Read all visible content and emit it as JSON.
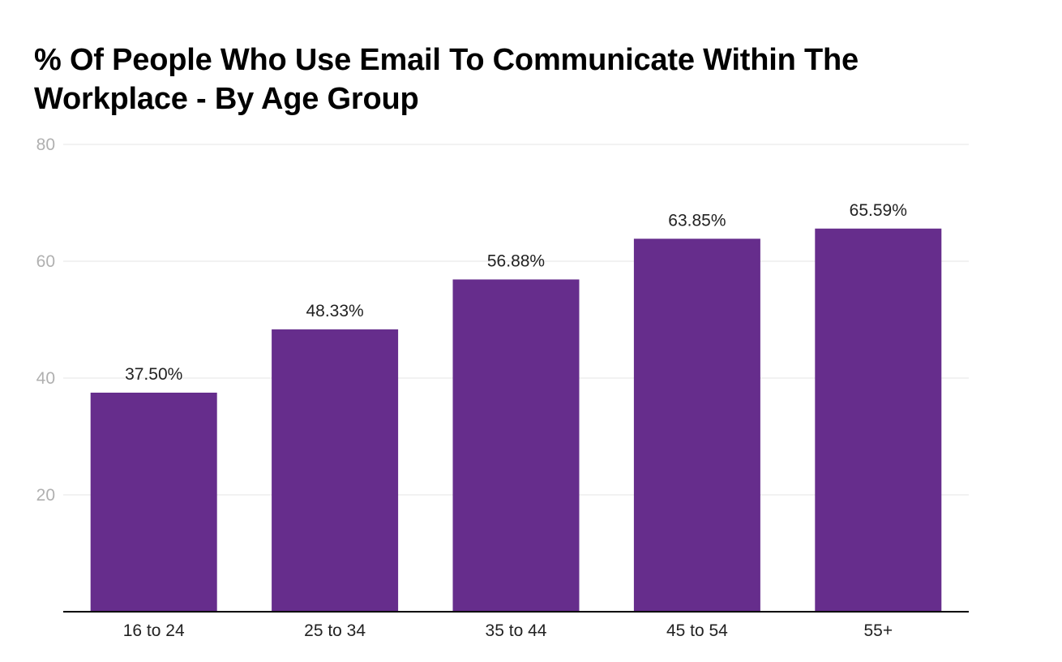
{
  "chart_data": {
    "type": "bar",
    "title": "% Of People Who Use Email To Communicate Within The Workplace - By Age Group",
    "categories": [
      "16 to 24",
      "25 to 34",
      "35 to 44",
      "45 to 54",
      "55+"
    ],
    "values": [
      37.5,
      48.33,
      56.88,
      63.85,
      65.59
    ],
    "data_labels": [
      "37.50%",
      "48.33%",
      "56.88%",
      "63.85%",
      "65.59%"
    ],
    "xlabel": "",
    "ylabel": "",
    "ylim": [
      0,
      80
    ],
    "yticks": [
      20,
      40,
      60,
      80
    ],
    "grid": true,
    "legend": "none",
    "bar_color": "#662d8c",
    "grid_color": "#e6e6e6",
    "axis_color": "#000000"
  }
}
